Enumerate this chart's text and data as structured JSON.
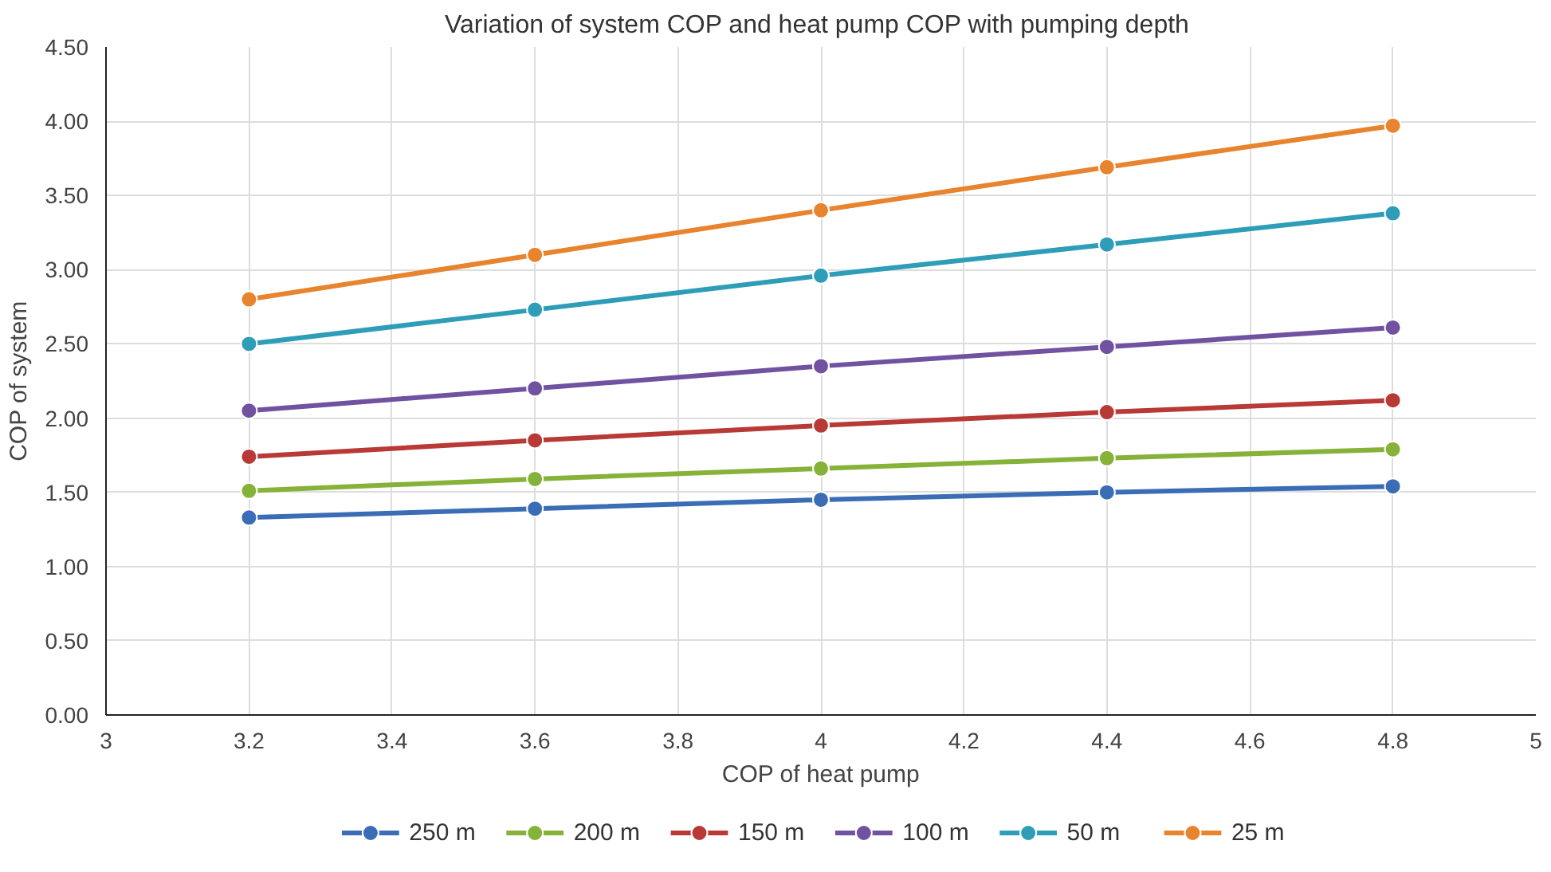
{
  "chart_data": {
    "type": "line",
    "title": "Variation of  system COP and heat pump COP with pumping depth",
    "xlabel": "COP of heat pump",
    "ylabel": "COP of system",
    "x": [
      3.2,
      3.6,
      4,
      4.4,
      4.8
    ],
    "series": [
      {
        "name": "250 m",
        "color": "#3a6db5",
        "values": [
          1.33,
          1.39,
          1.45,
          1.5,
          1.54
        ]
      },
      {
        "name": "200 m",
        "color": "#86b23a",
        "values": [
          1.51,
          1.59,
          1.66,
          1.73,
          1.79
        ]
      },
      {
        "name": "150 m",
        "color": "#b83a36",
        "values": [
          1.74,
          1.85,
          1.95,
          2.04,
          2.12
        ]
      },
      {
        "name": "100 m",
        "color": "#7152a0",
        "values": [
          2.05,
          2.2,
          2.35,
          2.48,
          2.61
        ]
      },
      {
        "name": "50 m",
        "color": "#2e9db8",
        "values": [
          2.5,
          2.73,
          2.96,
          3.17,
          3.38
        ]
      },
      {
        "name": "25 m",
        "color": "#e8832e",
        "values": [
          2.8,
          3.1,
          3.4,
          3.69,
          3.97
        ]
      }
    ],
    "xlim": [
      3,
      5
    ],
    "xticks": [
      3,
      3.2,
      3.4,
      3.6,
      3.8,
      4,
      4.2,
      4.4,
      4.6,
      4.8,
      5
    ],
    "ylim": [
      0,
      4.5
    ],
    "yticks": [
      {
        "value": 0,
        "label": "0.00"
      },
      {
        "value": 0.5,
        "label": "0.50"
      },
      {
        "value": 1,
        "label": "1.00"
      },
      {
        "value": 1.5,
        "label": "1.50"
      },
      {
        "value": 2,
        "label": "2.00"
      },
      {
        "value": 2.5,
        "label": "2.50"
      },
      {
        "value": 3,
        "label": "3.00"
      },
      {
        "value": 3.5,
        "label": "3.50"
      },
      {
        "value": 4,
        "label": "4.00"
      },
      {
        "value": 4.5,
        "label": "4.50"
      }
    ],
    "grid": true,
    "legend": "bottom",
    "marker": "circle",
    "line_style": "solid"
  }
}
